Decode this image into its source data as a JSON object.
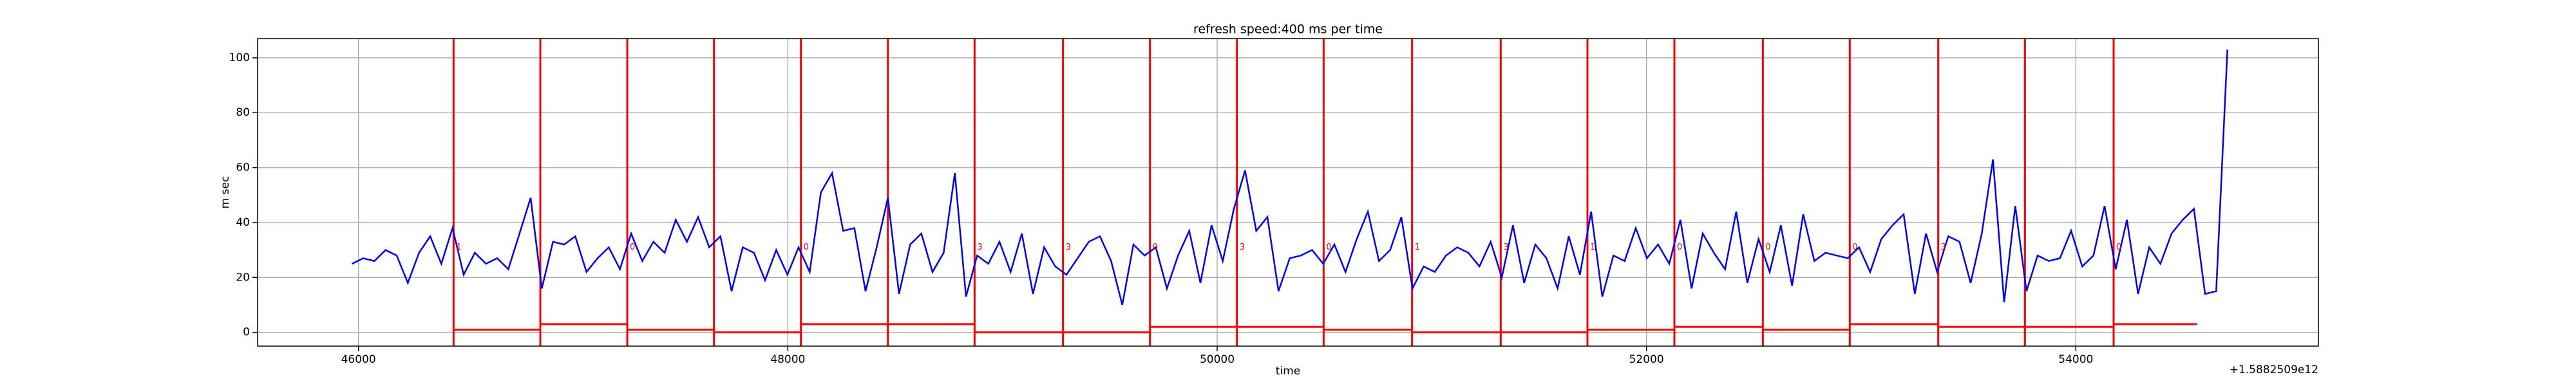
{
  "chart_data": {
    "type": "line",
    "title": "refresh speed:400 ms per time",
    "xlabel": "time",
    "ylabel": "m sec",
    "offset_text": "+1.5882509e12",
    "xlim": [
      45530,
      55130
    ],
    "xticks": [
      46000,
      48000,
      50000,
      52000,
      54000
    ],
    "ylim": [
      -5,
      107
    ],
    "yticks": [
      0,
      20,
      40,
      60,
      80,
      100
    ],
    "grid": true,
    "x": [
      45970,
      46022,
      46074,
      46126,
      46178,
      46230,
      46282,
      46334,
      46386,
      46438,
      46490,
      46542,
      46594,
      46646,
      46698,
      46750,
      46802,
      46854,
      46906,
      46958,
      47010,
      47062,
      47114,
      47166,
      47218,
      47270,
      47322,
      47374,
      47426,
      47478,
      47530,
      47582,
      47634,
      47686,
      47738,
      47790,
      47842,
      47894,
      47946,
      47998,
      48050,
      48102,
      48154,
      48206,
      48258,
      48310,
      48362,
      48414,
      48466,
      48518,
      48570,
      48622,
      48674,
      48726,
      48778,
      48830,
      48882,
      48934,
      48986,
      49038,
      49090,
      49142,
      49194,
      49246,
      49298,
      49350,
      49402,
      49454,
      49506,
      49558,
      49610,
      49662,
      49714,
      49766,
      49818,
      49870,
      49922,
      49974,
      50026,
      50078,
      50130,
      50182,
      50234,
      50286,
      50338,
      50390,
      50442,
      50494,
      50546,
      50598,
      50650,
      50702,
      50754,
      50806,
      50858,
      50910,
      50962,
      51014,
      51066,
      51118,
      51170,
      51222,
      51274,
      51326,
      51378,
      51430,
      51482,
      51534,
      51586,
      51638,
      51690,
      51742,
      51794,
      51846,
      51898,
      51950,
      52002,
      52054,
      52106,
      52158,
      52210,
      52262,
      52314,
      52366,
      52418,
      52470,
      52522,
      52574,
      52626,
      52678,
      52730,
      52782,
      52834,
      52886,
      52938,
      52990,
      53042,
      53094,
      53146,
      53198,
      53250,
      53302,
      53354,
      53406,
      53458,
      53510,
      53562,
      53614,
      53666,
      53718,
      53770,
      53822,
      53874,
      53926,
      53978,
      54030,
      54082,
      54134,
      54186,
      54238,
      54290,
      54342,
      54394,
      54446,
      54498,
      54550,
      54602,
      54654,
      54706
    ],
    "series": [
      {
        "color": "#0000ff",
        "values": [
          25,
          27,
          26,
          30,
          28,
          18,
          29,
          35,
          25,
          38,
          21,
          29,
          25,
          27,
          23,
          36,
          49,
          16,
          33,
          32,
          35,
          22,
          27,
          31,
          23,
          36,
          26,
          33,
          29,
          41,
          33,
          42,
          31,
          35,
          15,
          31,
          29,
          19,
          30,
          21,
          31,
          22,
          51,
          58,
          37,
          38,
          15,
          31,
          49,
          14,
          32,
          36,
          22,
          29,
          58,
          13,
          28,
          25,
          33,
          22,
          36,
          14,
          31,
          24,
          21,
          27,
          33,
          35,
          26,
          10,
          32,
          28,
          31,
          16,
          28,
          37,
          18,
          39,
          26,
          45,
          59,
          37,
          42,
          15,
          27,
          28,
          30,
          25,
          32,
          22,
          34,
          44,
          26,
          30,
          42,
          16,
          24,
          22,
          28,
          31,
          29,
          24,
          33,
          20,
          39,
          18,
          32,
          27,
          16,
          35,
          21,
          44,
          13,
          28,
          26,
          38,
          27,
          32,
          25,
          41,
          16,
          36,
          29,
          23,
          44,
          18,
          34,
          22,
          39,
          17,
          43,
          26,
          29,
          28,
          27,
          31,
          22,
          34,
          39,
          43,
          14,
          36,
          22,
          35,
          33,
          18,
          36,
          63,
          11,
          46,
          15,
          28,
          26,
          27,
          37,
          24,
          28,
          46,
          23,
          41,
          14,
          31,
          25,
          36,
          41,
          45,
          14,
          15,
          103
        ]
      }
    ],
    "marker_color": "#ff0000",
    "vlines": [
      46443,
      46847,
      47252,
      47656,
      48061,
      48466,
      48870,
      49282,
      49687,
      50092,
      50496,
      50908,
      51321,
      51725,
      52130,
      52542,
      52947,
      53359,
      53763,
      54176
    ],
    "segments": [
      {
        "x0": 46443,
        "x1": 46847,
        "y": 1
      },
      {
        "x0": 46847,
        "x1": 47252,
        "y": 3
      },
      {
        "x0": 47252,
        "x1": 47656,
        "y": 1
      },
      {
        "x0": 47656,
        "x1": 48061,
        "y": 0
      },
      {
        "x0": 48061,
        "x1": 48466,
        "y": 3
      },
      {
        "x0": 48466,
        "x1": 48870,
        "y": 3
      },
      {
        "x0": 48870,
        "x1": 49282,
        "y": 0
      },
      {
        "x0": 49282,
        "x1": 49687,
        "y": 0
      },
      {
        "x0": 49687,
        "x1": 50092,
        "y": 2
      },
      {
        "x0": 50092,
        "x1": 50496,
        "y": 2
      },
      {
        "x0": 50496,
        "x1": 50908,
        "y": 1
      },
      {
        "x0": 50908,
        "x1": 51321,
        "y": 0
      },
      {
        "x0": 51321,
        "x1": 51725,
        "y": 0
      },
      {
        "x0": 51725,
        "x1": 52130,
        "y": 1
      },
      {
        "x0": 52130,
        "x1": 52542,
        "y": 2
      },
      {
        "x0": 52542,
        "x1": 52947,
        "y": 1
      },
      {
        "x0": 52947,
        "x1": 53359,
        "y": 3
      },
      {
        "x0": 53359,
        "x1": 53763,
        "y": 2
      },
      {
        "x0": 53763,
        "x1": 54176,
        "y": 2
      },
      {
        "x0": 54176,
        "x1": 54565,
        "y": 3
      }
    ],
    "annotations": [
      {
        "x": 46443,
        "y": 31,
        "text": "1"
      },
      {
        "x": 47252,
        "y": 31,
        "text": "0"
      },
      {
        "x": 48061,
        "y": 31,
        "text": "0"
      },
      {
        "x": 48870,
        "y": 31,
        "text": "3"
      },
      {
        "x": 49282,
        "y": 31,
        "text": "3"
      },
      {
        "x": 49687,
        "y": 31,
        "text": "0"
      },
      {
        "x": 50092,
        "y": 31,
        "text": "3"
      },
      {
        "x": 50496,
        "y": 31,
        "text": "0"
      },
      {
        "x": 50908,
        "y": 31,
        "text": "1"
      },
      {
        "x": 51321,
        "y": 31,
        "text": "3"
      },
      {
        "x": 51725,
        "y": 31,
        "text": "1"
      },
      {
        "x": 52130,
        "y": 31,
        "text": "0"
      },
      {
        "x": 52542,
        "y": 31,
        "text": "0"
      },
      {
        "x": 52947,
        "y": 31,
        "text": "0"
      },
      {
        "x": 53359,
        "y": 31,
        "text": "3"
      },
      {
        "x": 54176,
        "y": 31,
        "text": "0"
      }
    ]
  }
}
